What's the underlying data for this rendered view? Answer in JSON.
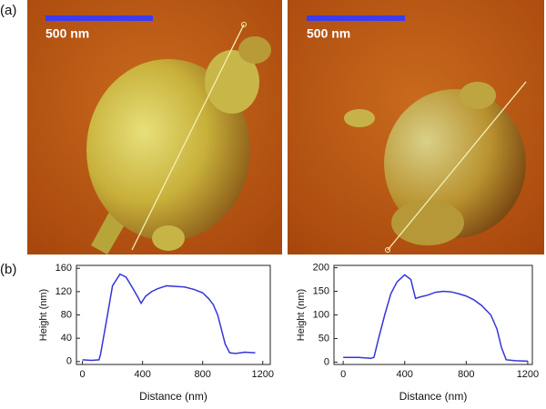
{
  "figure": {
    "panel_labels": [
      "(a)",
      "(b)"
    ],
    "scale_bar_labels": [
      "500 nm",
      "500 nm"
    ]
  },
  "chart_data": [
    {
      "type": "line",
      "x_label": "Distance (nm)",
      "y_label": "Height (nm)",
      "color": "#3535d8",
      "x": [
        0,
        60,
        110,
        120,
        160,
        200,
        250,
        290,
        330,
        370,
        390,
        420,
        460,
        500,
        560,
        620,
        680,
        740,
        800,
        840,
        870,
        900,
        920,
        950,
        980,
        1020,
        1080,
        1150
      ],
      "values": [
        3,
        2,
        3,
        12,
        70,
        130,
        150,
        145,
        128,
        110,
        100,
        112,
        120,
        125,
        130,
        129,
        128,
        124,
        118,
        108,
        98,
        80,
        60,
        30,
        15,
        14,
        16,
        15
      ],
      "xlim": [
        -40,
        1250
      ],
      "ylim": [
        -5,
        165
      ],
      "xticks": [
        0,
        400,
        800,
        1200
      ],
      "yticks": [
        0,
        40,
        80,
        120,
        160
      ]
    },
    {
      "type": "line",
      "x_label": "Distance (nm)",
      "y_label": "Height (nm)",
      "color": "#3535d8",
      "x": [
        0,
        100,
        180,
        200,
        230,
        270,
        310,
        350,
        400,
        440,
        470,
        500,
        550,
        600,
        650,
        700,
        750,
        800,
        850,
        900,
        960,
        1000,
        1030,
        1060,
        1120,
        1200
      ],
      "values": [
        10,
        10,
        8,
        10,
        50,
        100,
        145,
        170,
        185,
        175,
        135,
        138,
        142,
        148,
        150,
        149,
        145,
        140,
        132,
        120,
        100,
        70,
        30,
        5,
        3,
        2
      ],
      "xlim": [
        -60,
        1230
      ],
      "ylim": [
        -5,
        205
      ],
      "xticks": [
        0,
        400,
        800,
        1200
      ],
      "yticks": [
        0,
        50,
        100,
        150,
        200
      ]
    }
  ]
}
